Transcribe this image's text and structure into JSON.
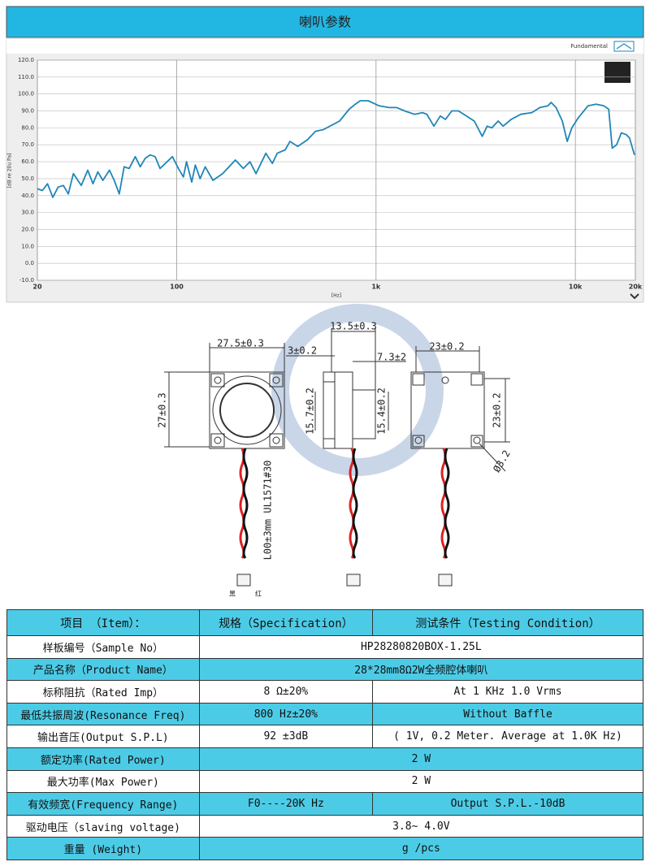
{
  "header": {
    "title": "喇叭参数"
  },
  "chart_data": {
    "type": "line",
    "x_label": "[Hz]",
    "y_label": "[dB re 20u Pa]",
    "x_scale": "log",
    "grid": true,
    "x": [
      20,
      21.2,
      22.5,
      23.9,
      25.4,
      27,
      28.6,
      30.3,
      33.2,
      35.8,
      38,
      40.2,
      42.6,
      46,
      48.6,
      51.5,
      54.5,
      57.7,
      62,
      65.6,
      69.5,
      73.6,
      77.9,
      82.5,
      95.2,
      102,
      108,
      112,
      119,
      124,
      131,
      139,
      152,
      170,
      197,
      216,
      233,
      250,
      280,
      302,
      319,
      350,
      370,
      405,
      453,
      497,
      545,
      609,
      656,
      733,
      788,
      834,
      914,
      1036,
      1160,
      1270,
      1390,
      1560,
      1710,
      1800,
      1950,
      2100,
      2230,
      2400,
      2590,
      2840,
      3110,
      3410,
      3610,
      3810,
      4100,
      4340,
      4760,
      5320,
      6050,
      6640,
      7280,
      7560,
      8000,
      8600,
      9100,
      9600,
      10350,
      11570,
      12700,
      13900,
      14700,
      15300,
      16100,
      17000,
      18000,
      18700,
      19800
    ],
    "series": [
      {
        "name": "Fundamental",
        "color": "#1f86b8",
        "values": [
          44,
          43,
          47,
          39,
          45,
          46,
          41,
          53,
          46,
          55,
          47,
          54,
          49,
          55,
          49,
          41,
          57,
          56,
          63,
          57,
          62,
          64,
          63,
          56,
          63,
          56,
          51,
          60,
          48,
          58,
          50,
          57,
          49,
          53,
          61,
          56,
          60,
          53,
          65,
          59,
          65,
          67,
          72,
          69,
          73,
          78,
          79,
          82,
          84,
          91,
          94,
          96,
          96,
          93,
          92,
          92,
          90,
          88,
          89,
          88,
          81,
          87,
          85,
          90,
          90,
          87,
          84,
          75,
          81,
          80,
          84,
          81,
          85,
          88,
          89,
          92,
          93,
          95,
          92,
          84,
          72,
          80,
          86,
          93,
          94,
          93,
          91,
          68,
          70,
          77,
          76,
          74,
          64
        ]
      }
    ],
    "xlim": [
      20,
      20000
    ],
    "xticks": [
      20,
      100,
      {
        "value": 1000,
        "label": "1k"
      },
      {
        "value": 10000,
        "label": "10k"
      },
      {
        "value": 20000,
        "label": "20k"
      }
    ],
    "ylim": [
      -10,
      120
    ],
    "yticks": [
      {
        "value": -10,
        "label": "-10.0"
      },
      {
        "value": 0,
        "label": "0.0"
      },
      {
        "value": 10,
        "label": "10.0"
      },
      {
        "value": 20,
        "label": "20.0"
      },
      {
        "value": 30,
        "label": "30.0"
      },
      {
        "value": 40,
        "label": "40.0"
      },
      {
        "value": 50,
        "label": "50.0"
      },
      {
        "value": 60,
        "label": "60.0"
      },
      {
        "value": 70,
        "label": "70.0"
      },
      {
        "value": 80,
        "label": "80.0"
      },
      {
        "value": 90,
        "label": "90.0"
      },
      {
        "value": 100,
        "label": "100.0"
      },
      {
        "value": 110,
        "label": "110.0"
      },
      {
        "value": 120,
        "label": "120.0"
      }
    ]
  },
  "drawing": {
    "front_width": "27.5±0.3",
    "front_height": "27±0.3",
    "tab_offset": "3±0.2",
    "side_width": "13.5±0.3",
    "side_depth": "7.3±2",
    "side_height_left": "15.7±0.2",
    "side_height_right": "15.4±0.2",
    "back_width": "23±0.2",
    "back_height": "23±0.2",
    "hole": "Ø3.2",
    "cable": "L00±3mm UL1571#30",
    "black_wire": "黑",
    "red_wire": "红"
  },
  "table": {
    "header": [
      "项目 （Item）：",
      "规格（Specification）",
      "测试条件（Testing Condition）"
    ],
    "rows": [
      [
        "样板编号（Sample No）",
        "HP28280820BOX-1.25L"
      ],
      [
        "产品名称（Product Name）",
        "28*28mm8Ω2W全频腔体喇叭"
      ],
      [
        "标称阻抗（Rated Imp）",
        "8 Ω±20%",
        "At 1 KHz  1.0 Vrms"
      ],
      [
        "最低共振周波(Resonance Freq)",
        "800 Hz±20%",
        "Without Baffle"
      ],
      [
        "输出音压(Output S.P.L)",
        "92 ±3dB",
        "( 1V, 0.2 Meter. Average at 1.0K Hz)"
      ],
      [
        "额定功率(Rated Power)",
        "2 W"
      ],
      [
        "最大功率(Max Power)",
        "2 W"
      ],
      [
        "有效频宽(Frequency Range)",
        "F0----20K Hz",
        "Output S.P.L.-10dB"
      ],
      [
        "驱动电压（slaving voltage)",
        "3.8~ 4.0V"
      ],
      [
        "重量 (Weight)",
        "g /pcs"
      ]
    ]
  }
}
